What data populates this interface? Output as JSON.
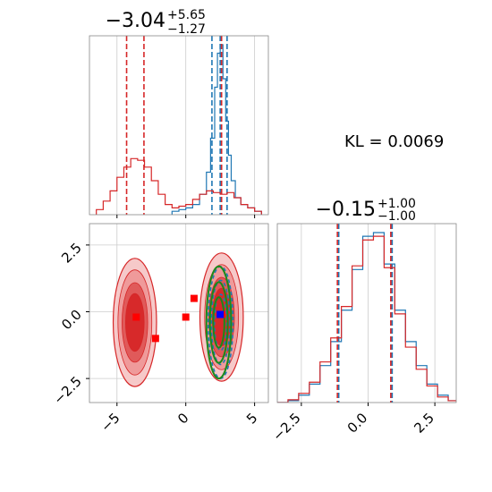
{
  "annotation": "KL = 0.0069",
  "chart_data": [
    {
      "type": "histogram",
      "panel": "marginal-x",
      "title": {
        "main": "−3.04",
        "sup": "+5.65",
        "sub": "−1.27"
      },
      "xlim": [
        -7,
        6
      ],
      "grid": true,
      "series": [
        {
          "name": "",
          "color": "#1f77b4",
          "bins": [
            [
              -1,
              0.02
            ],
            [
              -0.5,
              0.03
            ],
            [
              0,
              0.04
            ],
            [
              0.5,
              0.06
            ],
            [
              1,
              0.12
            ],
            [
              1.5,
              0.25
            ],
            [
              1.8,
              0.45
            ],
            [
              2.1,
              0.75
            ],
            [
              2.3,
              0.95
            ],
            [
              2.5,
              1.0
            ],
            [
              2.7,
              0.8
            ],
            [
              2.9,
              0.55
            ],
            [
              3.1,
              0.35
            ],
            [
              3.3,
              0.2
            ],
            [
              3.6,
              0.1
            ],
            [
              4,
              0.06
            ],
            [
              4.5,
              0.04
            ],
            [
              5,
              0.02
            ]
          ],
          "quantiles": [
            1.9,
            2.5,
            3.0
          ]
        },
        {
          "name": "",
          "color": "#d62728",
          "bins": [
            [
              -6.5,
              0.03
            ],
            [
              -6,
              0.08
            ],
            [
              -5.5,
              0.14
            ],
            [
              -5,
              0.22
            ],
            [
              -4.5,
              0.28
            ],
            [
              -4,
              0.33
            ],
            [
              -3.5,
              0.32
            ],
            [
              -3,
              0.28
            ],
            [
              -2.5,
              0.2
            ],
            [
              -2,
              0.12
            ],
            [
              -1.5,
              0.06
            ],
            [
              -1,
              0.04
            ],
            [
              -0.5,
              0.05
            ],
            [
              0,
              0.06
            ],
            [
              0.5,
              0.09
            ],
            [
              1,
              0.12
            ],
            [
              1.5,
              0.14
            ],
            [
              2,
              0.13
            ],
            [
              2.5,
              0.12
            ],
            [
              3,
              0.13
            ],
            [
              3.5,
              0.1
            ],
            [
              4,
              0.06
            ],
            [
              4.5,
              0.04
            ],
            [
              5,
              0.02
            ]
          ],
          "quantiles": [
            -4.3,
            -3.04,
            2.6
          ]
        }
      ]
    },
    {
      "type": "histogram",
      "panel": "marginal-y",
      "title": {
        "main": "−0.15",
        "sup": "+1.00",
        "sub": "−1.00"
      },
      "xlim": [
        -3.4,
        3.3
      ],
      "xticks": [
        -2.5,
        0.0,
        2.5
      ],
      "xtick_labels": [
        "−2.5",
        "0.0",
        "2.5"
      ],
      "grid": true,
      "series": [
        {
          "name": "",
          "color": "#1f77b4",
          "bins": [
            [
              -3.4,
              0.0
            ],
            [
              -3,
              0.01
            ],
            [
              -2.6,
              0.04
            ],
            [
              -2.2,
              0.1
            ],
            [
              -1.8,
              0.2
            ],
            [
              -1.4,
              0.33
            ],
            [
              -1.0,
              0.5
            ],
            [
              -0.6,
              0.72
            ],
            [
              -0.2,
              0.9
            ],
            [
              0.2,
              0.92
            ],
            [
              0.6,
              0.75
            ],
            [
              1.0,
              0.5
            ],
            [
              1.4,
              0.33
            ],
            [
              1.8,
              0.2
            ],
            [
              2.2,
              0.1
            ],
            [
              2.6,
              0.04
            ],
            [
              3.0,
              0.01
            ]
          ],
          "quantiles": [
            -1.15,
            -0.15,
            0.85
          ]
        },
        {
          "name": "",
          "color": "#d62728",
          "bins": [
            [
              -3.4,
              0.0
            ],
            [
              -3,
              0.015
            ],
            [
              -2.6,
              0.05
            ],
            [
              -2.2,
              0.11
            ],
            [
              -1.8,
              0.22
            ],
            [
              -1.4,
              0.35
            ],
            [
              -1.0,
              0.52
            ],
            [
              -0.6,
              0.74
            ],
            [
              -0.2,
              0.88
            ],
            [
              0.2,
              0.9
            ],
            [
              0.6,
              0.73
            ],
            [
              1.0,
              0.48
            ],
            [
              1.4,
              0.3
            ],
            [
              1.8,
              0.18
            ],
            [
              2.2,
              0.09
            ],
            [
              2.6,
              0.03
            ],
            [
              3.0,
              0.01
            ]
          ],
          "quantiles": [
            -1.15,
            -0.15,
            0.85
          ]
        }
      ]
    },
    {
      "type": "contour",
      "panel": "joint",
      "xlim": [
        -7,
        6
      ],
      "ylim": [
        -3.4,
        3.3
      ],
      "xticks": [
        -5,
        0,
        5
      ],
      "xtick_labels": [
        "−5",
        "0",
        "5"
      ],
      "yticks": [
        -2.5,
        0.0,
        2.5
      ],
      "ytick_labels": [
        "−2.5",
        "0.0",
        "2.5"
      ],
      "grid": true,
      "red_modes": [
        {
          "cx": -3.7,
          "cy": -0.4,
          "rx": 3.0,
          "ry": 2.4
        },
        {
          "cx": 2.6,
          "cy": -0.2,
          "rx": 3.0,
          "ry": 2.4
        }
      ],
      "green_ellipse": {
        "cx": 2.4,
        "cy": -0.4,
        "rx": 0.9,
        "ry": 2.1
      },
      "red_markers": [
        [
          -3.6,
          -0.2
        ],
        [
          -2.2,
          -1.0
        ],
        [
          0.6,
          0.5
        ],
        [
          0.0,
          -0.2
        ],
        [
          2.6,
          -0.1
        ]
      ],
      "blue_marker": [
        2.5,
        -0.1
      ]
    }
  ]
}
